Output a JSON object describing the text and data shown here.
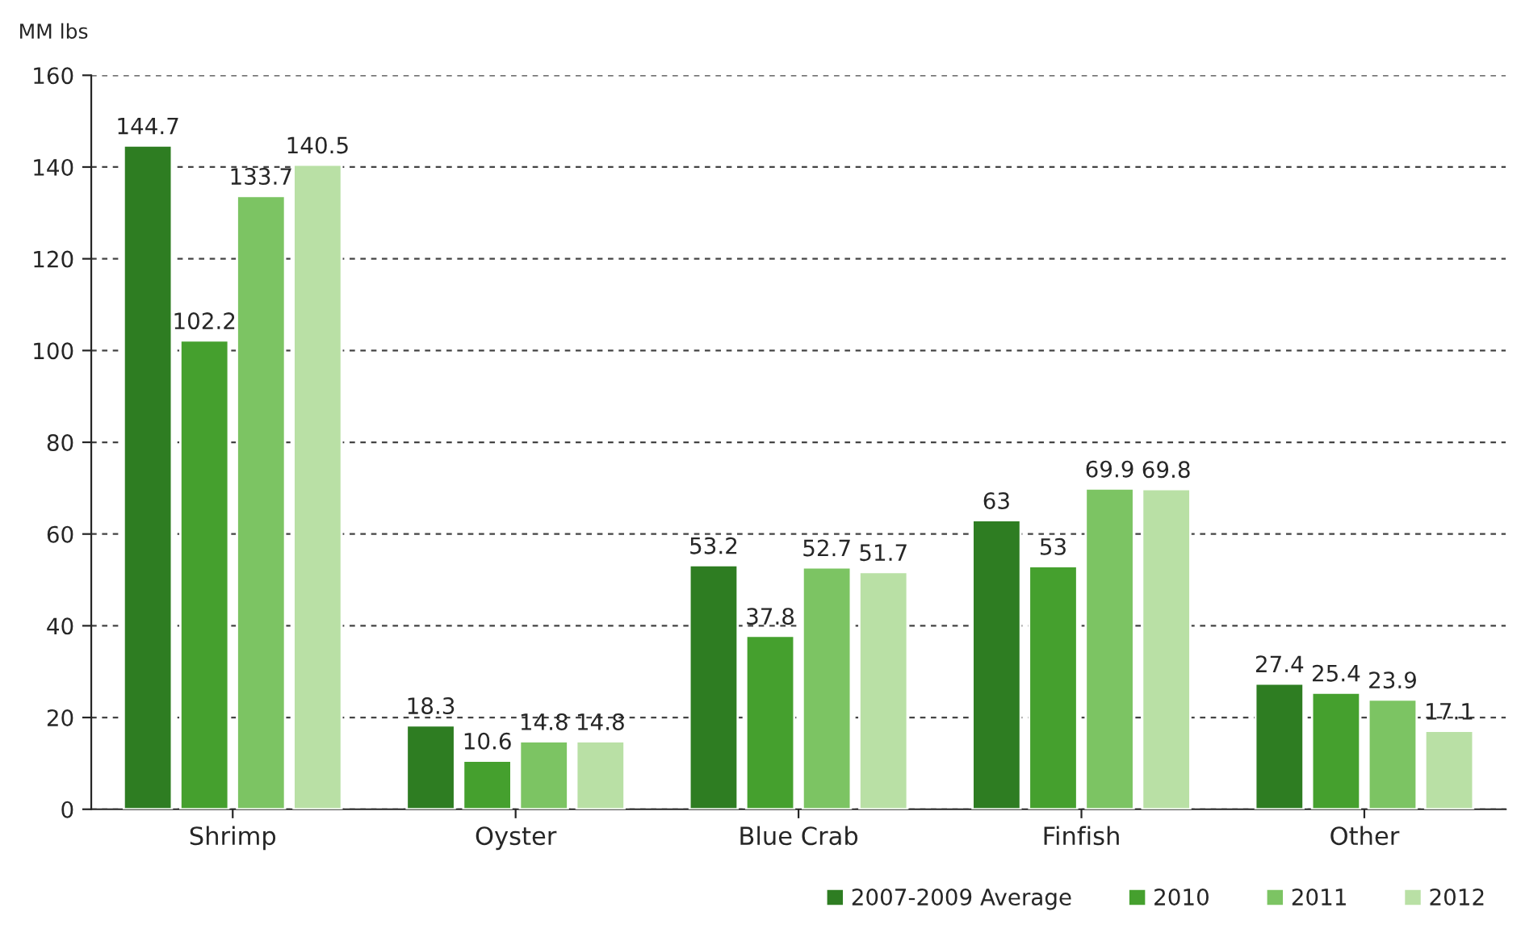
{
  "chart_data": {
    "type": "bar",
    "ylabel": "MM lbs",
    "categories": [
      "Shrimp",
      "Oyster",
      "Blue Crab",
      "Finfish",
      "Other"
    ],
    "series": [
      {
        "name": "2007-2009 Average",
        "color": "#2e7d22",
        "values": [
          144.7,
          18.3,
          53.2,
          63,
          27.4
        ]
      },
      {
        "name": "2010",
        "color": "#45a02e",
        "values": [
          102.2,
          10.6,
          37.8,
          53,
          25.4
        ]
      },
      {
        "name": "2011",
        "color": "#7cc463",
        "values": [
          133.7,
          14.8,
          52.7,
          69.9,
          23.9
        ]
      },
      {
        "name": "2012",
        "color": "#b9e0a5",
        "values": [
          140.5,
          14.8,
          51.7,
          69.8,
          17.1
        ]
      }
    ],
    "ylim": [
      0,
      160
    ],
    "yticks": [
      0,
      20,
      40,
      60,
      80,
      100,
      120,
      140,
      160
    ],
    "grid": "y",
    "legend": "bottom right",
    "data_labels": true
  }
}
